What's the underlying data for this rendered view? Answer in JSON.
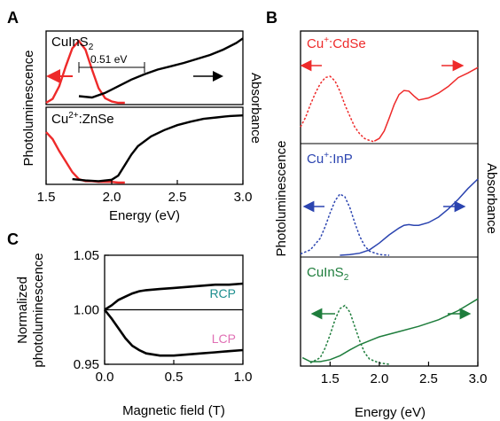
{
  "chart_data": [
    {
      "panel": "A",
      "type": "line",
      "sub": [
        {
          "label": "CuInS₂",
          "label_main": "CuInS",
          "label_sub": "2",
          "color_pl": "#ee2a2a",
          "color_abs": "#000000",
          "annotation": "0.51 eV",
          "series": [
            {
              "name": "Photoluminescence",
              "x": [
                1.5,
                1.55,
                1.6,
                1.65,
                1.7,
                1.75,
                1.8,
                1.85,
                1.9,
                1.95,
                2.0,
                2.05,
                2.1
              ],
              "values": [
                0.0,
                0.06,
                0.25,
                0.55,
                0.82,
                0.93,
                0.8,
                0.5,
                0.22,
                0.07,
                0.02,
                0.0,
                0.0
              ]
            },
            {
              "name": "Absorbance",
              "x": [
                1.75,
                1.85,
                1.95,
                2.05,
                2.15,
                2.25,
                2.35,
                2.45,
                2.55,
                2.65,
                2.75,
                2.85,
                2.95,
                3.0
              ],
              "values": [
                0.1,
                0.08,
                0.15,
                0.25,
                0.35,
                0.43,
                0.5,
                0.55,
                0.6,
                0.66,
                0.72,
                0.8,
                0.9,
                0.97
              ]
            }
          ]
        },
        {
          "label": "Cu²⁺:ZnSe",
          "label_main": "Cu",
          "label_sup": "2+",
          "label_tail": ":ZnSe",
          "color_pl": "#ee2a2a",
          "color_abs": "#000000",
          "series": [
            {
              "name": "Photoluminescence",
              "x": [
                1.5,
                1.55,
                1.6,
                1.65,
                1.7,
                1.75,
                1.8,
                1.85,
                1.9,
                1.95,
                2.0,
                2.05,
                2.1
              ],
              "values": [
                0.72,
                0.62,
                0.45,
                0.3,
                0.15,
                0.05,
                0.02,
                0.02,
                0.01,
                0.01,
                0.01,
                0.0,
                0.0
              ]
            },
            {
              "name": "Absorbance",
              "x": [
                1.7,
                1.8,
                1.9,
                2.0,
                2.05,
                2.1,
                2.15,
                2.2,
                2.3,
                2.4,
                2.5,
                2.6,
                2.7,
                2.8,
                2.9,
                3.0
              ],
              "values": [
                0.05,
                0.03,
                0.02,
                0.04,
                0.1,
                0.25,
                0.4,
                0.52,
                0.66,
                0.75,
                0.82,
                0.87,
                0.91,
                0.93,
                0.95,
                0.96
              ]
            }
          ]
        }
      ],
      "xlim": [
        1.5,
        3.0
      ],
      "xticks": [
        "1.5",
        "2.0",
        "2.5",
        "3.0"
      ],
      "xlabel": "Energy (eV)",
      "ylabel_left": "Photoluminescence",
      "ylabel_right": "Absorbance"
    },
    {
      "panel": "B",
      "type": "line",
      "sub": [
        {
          "label": "Cu⁺:CdSe",
          "label_main": "Cu",
          "label_sup": "+",
          "label_tail": ":CdSe",
          "color": "#ee2a2a",
          "series": [
            {
              "name": "Photoluminescence",
              "x": [
                1.2,
                1.25,
                1.3,
                1.35,
                1.4,
                1.45,
                1.5,
                1.55,
                1.6,
                1.65,
                1.7,
                1.75,
                1.8,
                1.85,
                1.9,
                1.95
              ],
              "values": [
                0.22,
                0.36,
                0.55,
                0.72,
                0.86,
                0.95,
                0.97,
                0.9,
                0.75,
                0.55,
                0.38,
                0.22,
                0.12,
                0.05,
                0.02,
                0.0
              ]
            },
            {
              "name": "Absorbance",
              "x": [
                1.95,
                2.0,
                2.05,
                2.1,
                2.15,
                2.2,
                2.25,
                2.3,
                2.35,
                2.4,
                2.5,
                2.6,
                2.7,
                2.8,
                2.9,
                3.0
              ],
              "values": [
                0.01,
                0.05,
                0.16,
                0.35,
                0.55,
                0.7,
                0.76,
                0.75,
                0.68,
                0.62,
                0.65,
                0.72,
                0.82,
                0.95,
                1.02,
                1.1
              ]
            }
          ]
        },
        {
          "label": "Cu⁺:InP",
          "label_main": "Cu",
          "label_sup": "+",
          "label_tail": ":InP",
          "color": "#2b44b0",
          "series": [
            {
              "name": "Photoluminescence",
              "x": [
                1.2,
                1.3,
                1.4,
                1.45,
                1.5,
                1.55,
                1.6,
                1.65,
                1.7,
                1.75,
                1.8,
                1.85,
                1.9,
                2.0,
                2.1
              ],
              "values": [
                0.02,
                0.08,
                0.25,
                0.42,
                0.62,
                0.8,
                0.9,
                0.86,
                0.7,
                0.48,
                0.28,
                0.14,
                0.06,
                0.01,
                0.0
              ]
            },
            {
              "name": "Absorbance",
              "x": [
                1.6,
                1.7,
                1.8,
                1.9,
                2.0,
                2.1,
                2.2,
                2.25,
                2.3,
                2.35,
                2.4,
                2.5,
                2.6,
                2.7,
                2.8,
                2.9,
                3.0
              ],
              "values": [
                0.0,
                0.01,
                0.03,
                0.08,
                0.18,
                0.3,
                0.4,
                0.44,
                0.45,
                0.44,
                0.44,
                0.48,
                0.56,
                0.68,
                0.82,
                0.98,
                1.12
              ]
            }
          ]
        },
        {
          "label": "CuInS₂",
          "label_main": "CuInS",
          "label_sub": "2",
          "color": "#1e7d3c",
          "series": [
            {
              "name": "Photoluminescence",
              "x": [
                1.3,
                1.4,
                1.45,
                1.5,
                1.55,
                1.6,
                1.65,
                1.7,
                1.75,
                1.8,
                1.85,
                1.9,
                2.0,
                2.1
              ],
              "values": [
                0.02,
                0.1,
                0.25,
                0.45,
                0.68,
                0.85,
                0.9,
                0.8,
                0.58,
                0.36,
                0.18,
                0.08,
                0.02,
                0.0
              ]
            },
            {
              "name": "Absorbance",
              "x": [
                1.22,
                1.3,
                1.4,
                1.5,
                1.6,
                1.7,
                1.8,
                1.9,
                2.0,
                2.2,
                2.4,
                2.6,
                2.8,
                3.0
              ],
              "values": [
                0.1,
                0.04,
                0.04,
                0.07,
                0.13,
                0.22,
                0.3,
                0.36,
                0.42,
                0.5,
                0.58,
                0.68,
                0.82,
                1.0
              ]
            }
          ]
        }
      ],
      "xlim": [
        1.2,
        3.0
      ],
      "xticks": [
        "1.5",
        "2.0",
        "2.5",
        "3.0"
      ],
      "xlabel": "Energy (eV)",
      "ylabel_left": "Photoluminescence",
      "ylabel_right": "Absorbance"
    },
    {
      "panel": "C",
      "type": "line",
      "series": [
        {
          "name": "RCP",
          "color": "#1e8f8f",
          "line_color": "#000000",
          "x": [
            0,
            0.05,
            0.1,
            0.15,
            0.2,
            0.25,
            0.3,
            0.4,
            0.5,
            0.6,
            0.7,
            0.8,
            0.9,
            1.0
          ],
          "values": [
            1.0,
            1.004,
            1.009,
            1.012,
            1.015,
            1.017,
            1.018,
            1.019,
            1.02,
            1.021,
            1.022,
            1.023,
            1.023,
            1.024
          ]
        },
        {
          "name": "LCP",
          "color": "#e06fb4",
          "line_color": "#000000",
          "x": [
            0,
            0.05,
            0.1,
            0.15,
            0.2,
            0.25,
            0.3,
            0.4,
            0.5,
            0.6,
            0.7,
            0.8,
            0.9,
            1.0
          ],
          "values": [
            1.0,
            0.992,
            0.983,
            0.974,
            0.967,
            0.963,
            0.96,
            0.958,
            0.958,
            0.959,
            0.96,
            0.961,
            0.962,
            0.963
          ]
        }
      ],
      "reference_y": 1.0,
      "xlim": [
        0,
        1.0
      ],
      "ylim": [
        0.95,
        1.05
      ],
      "xticks": [
        "0.0",
        "0.5",
        "1.0"
      ],
      "yticks": [
        "0.95",
        "1.00",
        "1.05"
      ],
      "xlabel": "Magnetic field (T)",
      "ylabel_lines": [
        "Normalized",
        "photoluminescence"
      ]
    }
  ]
}
